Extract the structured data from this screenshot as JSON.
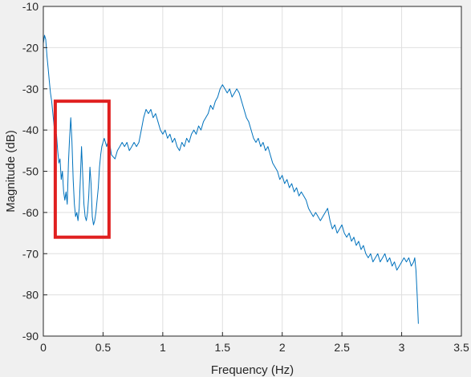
{
  "chart_data": {
    "type": "line",
    "xlabel": "Frequency (Hz)",
    "ylabel": "Magnitude (dB)",
    "xlim": [
      0,
      3.5
    ],
    "ylim": [
      -90,
      -10
    ],
    "xticks": [
      0,
      0.5,
      1,
      1.5,
      2,
      2.5,
      3,
      3.5
    ],
    "xtick_labels": [
      "0",
      "0.5",
      "1",
      "1.5",
      "2",
      "2.5",
      "3",
      "3.5"
    ],
    "yticks": [
      -90,
      -80,
      -70,
      -60,
      -50,
      -40,
      -30,
      -20,
      -10
    ],
    "ytick_labels": [
      "-90",
      "-80",
      "-70",
      "-60",
      "-50",
      "-40",
      "-30",
      "-20",
      "-10"
    ],
    "grid": true,
    "series": [
      {
        "color": "#0072bd",
        "points": [
          [
            0.0,
            -19
          ],
          [
            0.01,
            -17
          ],
          [
            0.02,
            -18
          ],
          [
            0.03,
            -22
          ],
          [
            0.04,
            -25
          ],
          [
            0.05,
            -28
          ],
          [
            0.06,
            -31
          ],
          [
            0.07,
            -33
          ],
          [
            0.08,
            -36
          ],
          [
            0.09,
            -39
          ],
          [
            0.1,
            -42
          ],
          [
            0.11,
            -41
          ],
          [
            0.12,
            -45
          ],
          [
            0.13,
            -48
          ],
          [
            0.14,
            -47
          ],
          [
            0.15,
            -52
          ],
          [
            0.16,
            -50
          ],
          [
            0.17,
            -55
          ],
          [
            0.18,
            -57
          ],
          [
            0.19,
            -55
          ],
          [
            0.2,
            -58
          ],
          [
            0.21,
            -48
          ],
          [
            0.22,
            -42
          ],
          [
            0.23,
            -37
          ],
          [
            0.24,
            -43
          ],
          [
            0.25,
            -52
          ],
          [
            0.26,
            -58
          ],
          [
            0.27,
            -61
          ],
          [
            0.28,
            -60
          ],
          [
            0.29,
            -62
          ],
          [
            0.3,
            -59
          ],
          [
            0.31,
            -52
          ],
          [
            0.32,
            -44
          ],
          [
            0.33,
            -51
          ],
          [
            0.34,
            -58
          ],
          [
            0.35,
            -61
          ],
          [
            0.36,
            -62
          ],
          [
            0.37,
            -60
          ],
          [
            0.38,
            -56
          ],
          [
            0.39,
            -49
          ],
          [
            0.4,
            -53
          ],
          [
            0.41,
            -61
          ],
          [
            0.42,
            -63
          ],
          [
            0.43,
            -62
          ],
          [
            0.44,
            -60
          ],
          [
            0.45,
            -57
          ],
          [
            0.46,
            -54
          ],
          [
            0.47,
            -49
          ],
          [
            0.48,
            -46
          ],
          [
            0.49,
            -44
          ],
          [
            0.5,
            -43
          ],
          [
            0.51,
            -42
          ],
          [
            0.53,
            -44
          ],
          [
            0.55,
            -42
          ],
          [
            0.57,
            -46
          ],
          [
            0.6,
            -47
          ],
          [
            0.62,
            -45
          ],
          [
            0.64,
            -44
          ],
          [
            0.66,
            -43
          ],
          [
            0.68,
            -44
          ],
          [
            0.7,
            -43
          ],
          [
            0.72,
            -45
          ],
          [
            0.74,
            -44
          ],
          [
            0.76,
            -43
          ],
          [
            0.78,
            -44
          ],
          [
            0.8,
            -43
          ],
          [
            0.82,
            -40
          ],
          [
            0.84,
            -37
          ],
          [
            0.86,
            -35
          ],
          [
            0.88,
            -36
          ],
          [
            0.9,
            -35
          ],
          [
            0.92,
            -37
          ],
          [
            0.94,
            -36
          ],
          [
            0.96,
            -38
          ],
          [
            0.98,
            -40
          ],
          [
            1.0,
            -41
          ],
          [
            1.02,
            -40
          ],
          [
            1.04,
            -42
          ],
          [
            1.06,
            -41
          ],
          [
            1.08,
            -43
          ],
          [
            1.1,
            -42
          ],
          [
            1.12,
            -44
          ],
          [
            1.14,
            -45
          ],
          [
            1.16,
            -43
          ],
          [
            1.18,
            -44
          ],
          [
            1.2,
            -42
          ],
          [
            1.22,
            -43
          ],
          [
            1.24,
            -41
          ],
          [
            1.26,
            -40
          ],
          [
            1.28,
            -41
          ],
          [
            1.3,
            -39
          ],
          [
            1.32,
            -40
          ],
          [
            1.34,
            -38
          ],
          [
            1.36,
            -37
          ],
          [
            1.38,
            -36
          ],
          [
            1.4,
            -34
          ],
          [
            1.42,
            -35
          ],
          [
            1.44,
            -33
          ],
          [
            1.46,
            -32
          ],
          [
            1.48,
            -30
          ],
          [
            1.5,
            -29
          ],
          [
            1.52,
            -30
          ],
          [
            1.54,
            -31
          ],
          [
            1.56,
            -30
          ],
          [
            1.58,
            -32
          ],
          [
            1.6,
            -31
          ],
          [
            1.62,
            -30
          ],
          [
            1.64,
            -31
          ],
          [
            1.66,
            -33
          ],
          [
            1.68,
            -35
          ],
          [
            1.7,
            -37
          ],
          [
            1.72,
            -38
          ],
          [
            1.74,
            -40
          ],
          [
            1.76,
            -42
          ],
          [
            1.78,
            -43
          ],
          [
            1.8,
            -42
          ],
          [
            1.82,
            -44
          ],
          [
            1.84,
            -43
          ],
          [
            1.86,
            -45
          ],
          [
            1.88,
            -44
          ],
          [
            1.9,
            -46
          ],
          [
            1.92,
            -48
          ],
          [
            1.94,
            -49
          ],
          [
            1.96,
            -50
          ],
          [
            1.98,
            -52
          ],
          [
            2.0,
            -51
          ],
          [
            2.02,
            -53
          ],
          [
            2.04,
            -52
          ],
          [
            2.06,
            -54
          ],
          [
            2.08,
            -53
          ],
          [
            2.1,
            -55
          ],
          [
            2.12,
            -54
          ],
          [
            2.14,
            -56
          ],
          [
            2.16,
            -55
          ],
          [
            2.18,
            -56
          ],
          [
            2.2,
            -57
          ],
          [
            2.22,
            -59
          ],
          [
            2.24,
            -60
          ],
          [
            2.26,
            -61
          ],
          [
            2.28,
            -60
          ],
          [
            2.3,
            -61
          ],
          [
            2.32,
            -62
          ],
          [
            2.34,
            -61
          ],
          [
            2.36,
            -60
          ],
          [
            2.38,
            -59
          ],
          [
            2.4,
            -62
          ],
          [
            2.42,
            -64
          ],
          [
            2.44,
            -63
          ],
          [
            2.46,
            -65
          ],
          [
            2.48,
            -64
          ],
          [
            2.5,
            -63
          ],
          [
            2.52,
            -65
          ],
          [
            2.54,
            -66
          ],
          [
            2.56,
            -65
          ],
          [
            2.58,
            -67
          ],
          [
            2.6,
            -66
          ],
          [
            2.62,
            -68
          ],
          [
            2.64,
            -67
          ],
          [
            2.66,
            -69
          ],
          [
            2.68,
            -68
          ],
          [
            2.7,
            -70
          ],
          [
            2.72,
            -71
          ],
          [
            2.74,
            -70
          ],
          [
            2.76,
            -72
          ],
          [
            2.78,
            -71
          ],
          [
            2.8,
            -70
          ],
          [
            2.82,
            -72
          ],
          [
            2.84,
            -71
          ],
          [
            2.86,
            -70
          ],
          [
            2.88,
            -72
          ],
          [
            2.9,
            -71
          ],
          [
            2.92,
            -73
          ],
          [
            2.94,
            -72
          ],
          [
            2.96,
            -74
          ],
          [
            2.98,
            -73
          ],
          [
            3.0,
            -72
          ],
          [
            3.02,
            -71
          ],
          [
            3.04,
            -72
          ],
          [
            3.06,
            -71
          ],
          [
            3.08,
            -73
          ],
          [
            3.1,
            -72
          ],
          [
            3.11,
            -71
          ],
          [
            3.12,
            -74
          ],
          [
            3.13,
            -80
          ],
          [
            3.14,
            -87
          ]
        ]
      }
    ],
    "annotations": [
      {
        "type": "rectangle",
        "color": "#e02020",
        "x0": 0.1,
        "x1": 0.55,
        "y0": -66,
        "y1": -33
      }
    ]
  }
}
